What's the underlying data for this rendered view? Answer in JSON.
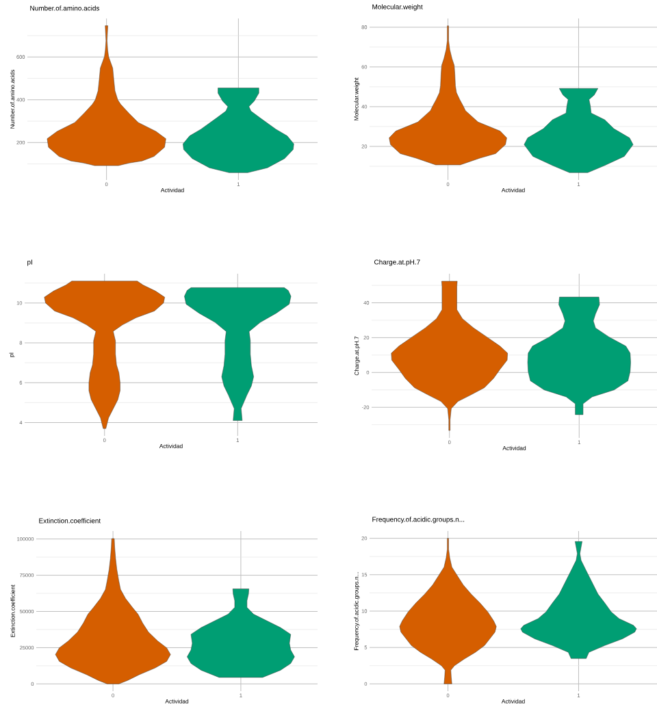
{
  "chart_data": [
    {
      "type": "area",
      "title": "Number.of.amino.acids",
      "xlabel": "Actividad",
      "ylabel": "Number.of.amino.acids",
      "xlim": [
        -0.6,
        1.6
      ],
      "xticks": [
        0,
        1
      ],
      "ylim": [
        25,
        780
      ],
      "yticks": [
        {
          "value": 100,
          "label": null
        },
        200,
        {
          "value": 300,
          "label": null
        },
        400,
        {
          "value": 500,
          "label": null
        },
        600,
        {
          "value": 700,
          "label": null
        }
      ],
      "grid": true,
      "series": [
        {
          "color": "#d55e00",
          "x": [
            -0.09,
            -0.17,
            -0.27,
            -0.36,
            -0.44,
            -0.45,
            -0.375,
            -0.24,
            -0.17,
            -0.107,
            -0.085,
            -0.064,
            -0.055,
            -0.047,
            -0.016,
            -0.009,
            -0.004,
            -0.006,
            -0.01,
            0.01,
            0.006,
            0.004,
            0.009,
            0.016,
            0.047,
            0.055,
            0.064,
            0.085,
            0.107,
            0.17,
            0.24,
            0.375,
            0.45,
            0.44,
            0.36,
            0.27,
            0.17,
            0.09
          ],
          "values": [
            92,
            104,
            114,
            135,
            178,
            218,
            252,
            294,
            337,
            379,
            400,
            442,
            495,
            548,
            601,
            633,
            676,
            700,
            746,
            746,
            700,
            676,
            633,
            601,
            548,
            495,
            442,
            400,
            379,
            337,
            294,
            252,
            218,
            178,
            135,
            114,
            104,
            92
          ]
        },
        {
          "color": "#009e73",
          "x": [
            0.93,
            0.78,
            0.65,
            0.585,
            0.58,
            0.63,
            0.715,
            0.835,
            0.905,
            0.92,
            0.88,
            0.845,
            0.845,
            1.155,
            1.155,
            1.12,
            1.08,
            1.095,
            1.165,
            1.285,
            1.37,
            1.42,
            1.415,
            1.35,
            1.22,
            1.07
          ],
          "values": [
            59,
            82,
            125,
            167,
            194,
            231,
            262,
            315,
            347,
            368,
            394,
            431,
            455,
            455,
            431,
            394,
            368,
            347,
            315,
            262,
            231,
            194,
            167,
            125,
            82,
            59
          ]
        }
      ]
    },
    {
      "type": "area",
      "title": "Molecular.weight",
      "xlabel": "Actividad",
      "ylabel": "Molecular.weight",
      "xlim": [
        -0.6,
        1.6
      ],
      "xticks": [
        0,
        1
      ],
      "ylim": [
        3.1,
        84.4
      ],
      "yticks": [
        {
          "value": 10,
          "label": null
        },
        20,
        {
          "value": 30,
          "label": null
        },
        40,
        {
          "value": 50,
          "label": null
        },
        60,
        {
          "value": 70,
          "label": null
        },
        80
      ],
      "grid": true,
      "series": [
        {
          "color": "#d55e00",
          "x": [
            -0.094,
            -0.245,
            -0.365,
            -0.44,
            -0.45,
            -0.4,
            -0.23,
            -0.134,
            -0.117,
            -0.09,
            -0.065,
            -0.057,
            -0.053,
            -0.048,
            -0.031,
            -0.014,
            -0.005,
            -0.005,
            0.005,
            0.005,
            0.014,
            0.031,
            0.048,
            0.053,
            0.057,
            0.065,
            0.09,
            0.117,
            0.134,
            0.23,
            0.4,
            0.45,
            0.44,
            0.365,
            0.245,
            0.094
          ],
          "values": [
            10.7,
            14.1,
            16.4,
            20.9,
            24.3,
            27.7,
            32.3,
            38,
            40.3,
            43.6,
            47.1,
            50.5,
            56.2,
            60.8,
            64.2,
            68.7,
            73.3,
            80.7,
            80.7,
            73.3,
            68.7,
            64.2,
            60.8,
            56.2,
            50.5,
            47.1,
            43.6,
            40.3,
            38,
            32.3,
            27.7,
            24.3,
            20.9,
            16.4,
            14.1,
            10.7
          ]
        },
        {
          "color": "#009e73",
          "x": [
            0.93,
            0.8,
            0.65,
            0.583,
            0.61,
            0.73,
            0.8,
            0.904,
            0.91,
            0.92,
            0.88,
            0.852,
            1.148,
            1.12,
            1.08,
            1.09,
            1.096,
            1.2,
            1.27,
            1.39,
            1.417,
            1.35,
            1.2,
            1.07
          ],
          "values": [
            6.8,
            10.4,
            15,
            20.9,
            24.3,
            28.9,
            33.4,
            36.8,
            40.3,
            43.6,
            45.9,
            49.2,
            49.2,
            45.9,
            43.6,
            40.3,
            36.8,
            33.4,
            28.9,
            24.3,
            20.9,
            15,
            10.4,
            6.8
          ]
        }
      ]
    },
    {
      "type": "area",
      "title": "pI",
      "xlabel": "Actividad",
      "ylabel": "pI",
      "xlim": [
        -0.6,
        1.6
      ],
      "xticks": [
        0,
        1
      ],
      "ylim": [
        3.33,
        11.47
      ],
      "yticks": [
        4,
        {
          "value": 5,
          "label": null
        },
        6,
        {
          "value": 7,
          "label": null
        },
        8,
        {
          "value": 9,
          "label": null
        },
        10,
        {
          "value": 11,
          "label": null
        }
      ],
      "grid": true,
      "series": [
        {
          "color": "#d55e00",
          "x": [
            -0.01,
            -0.03,
            -0.065,
            -0.1,
            -0.117,
            -0.117,
            -0.108,
            -0.09,
            -0.082,
            -0.082,
            -0.065,
            -0.134,
            -0.237,
            -0.375,
            -0.443,
            -0.452,
            -0.383,
            -0.29,
            -0.246,
            0.246,
            0.29,
            0.383,
            0.452,
            0.443,
            0.375,
            0.237,
            0.134,
            0.065,
            0.082,
            0.082,
            0.09,
            0.108,
            0.117,
            0.117,
            0.1,
            0.065,
            0.03,
            0.01
          ],
          "values": [
            3.7,
            4.23,
            4.69,
            5.15,
            5.6,
            6.0,
            6.5,
            6.9,
            7.44,
            8.1,
            8.58,
            8.9,
            9.26,
            9.6,
            10.0,
            10.29,
            10.6,
            10.9,
            11.1,
            11.1,
            10.9,
            10.6,
            10.29,
            10.0,
            9.6,
            9.26,
            8.9,
            8.58,
            8.1,
            7.44,
            6.9,
            6.5,
            6.0,
            5.6,
            5.15,
            4.69,
            4.23,
            3.7
          ]
        },
        {
          "color": "#009e73",
          "x": [
            0.966,
            0.974,
            0.931,
            0.897,
            0.88,
            0.897,
            0.905,
            0.905,
            0.914,
            0.83,
            0.71,
            0.613,
            0.6,
            0.62,
            0.65,
            1.35,
            1.38,
            1.4,
            1.387,
            1.29,
            1.17,
            1.086,
            1.095,
            1.095,
            1.103,
            1.12,
            1.103,
            1.069,
            1.026,
            1.034
          ],
          "values": [
            4.1,
            4.7,
            5.37,
            5.84,
            6.3,
            6.86,
            7.43,
            8.11,
            8.57,
            9.03,
            9.49,
            9.94,
            10.34,
            10.63,
            10.77,
            10.77,
            10.63,
            10.34,
            9.94,
            9.49,
            9.03,
            8.57,
            8.11,
            7.43,
            6.86,
            6.3,
            5.84,
            5.37,
            4.7,
            4.1
          ]
        }
      ]
    },
    {
      "type": "area",
      "title": "Charge.at.pH.7",
      "xlabel": "Actividad",
      "ylabel": "Charge.at.pH.7",
      "xlim": [
        -0.6,
        1.6
      ],
      "xticks": [
        0,
        1
      ],
      "ylim": [
        -37.6,
        56.7
      ],
      "yticks": [
        {
          "value": -30,
          "label": null
        },
        -20,
        {
          "value": -10,
          "label": null
        },
        0,
        {
          "value": 10,
          "label": null
        },
        20,
        {
          "value": 30,
          "label": null
        },
        40,
        {
          "value": 50,
          "label": null
        }
      ],
      "grid": true,
      "series": [
        {
          "color": "#d55e00",
          "x": [
            -0.005,
            -0.005,
            -0.014,
            -0.066,
            -0.17,
            -0.27,
            -0.34,
            -0.39,
            -0.445,
            -0.448,
            -0.39,
            -0.29,
            -0.186,
            -0.1,
            -0.057,
            -0.057,
            -0.06,
            0.06,
            0.057,
            0.057,
            0.1,
            0.186,
            0.29,
            0.39,
            0.448,
            0.445,
            0.39,
            0.34,
            0.27,
            0.17,
            0.066,
            0.014,
            0.005,
            0.005
          ],
          "values": [
            -33.3,
            -27.2,
            -20.7,
            -16.6,
            -12.7,
            -8.7,
            -3.4,
            1.8,
            7.1,
            11.1,
            15.1,
            20.3,
            25.6,
            30.9,
            36.1,
            49.3,
            52.4,
            52.4,
            49.3,
            36.1,
            30.9,
            25.6,
            20.3,
            15.1,
            11.1,
            7.1,
            1.8,
            -3.4,
            -8.7,
            -12.7,
            -16.6,
            -20.7,
            -27.2,
            -33.3
          ]
        },
        {
          "color": "#009e73",
          "x": [
            0.97,
            0.97,
            0.9,
            0.73,
            0.624,
            0.607,
            0.603,
            0.607,
            0.64,
            0.77,
            0.874,
            0.891,
            0.874,
            0.843,
            0.848,
            1.152,
            1.157,
            1.126,
            1.109,
            1.126,
            1.23,
            1.36,
            1.393,
            1.397,
            1.393,
            1.376,
            1.27,
            1.1,
            1.03,
            1.03
          ],
          "values": [
            -24.2,
            -18,
            -14,
            -10,
            -4.8,
            0.5,
            5.8,
            11.1,
            15.1,
            20.4,
            25.6,
            29.6,
            33.6,
            38.9,
            43.3,
            43.3,
            38.9,
            33.6,
            29.6,
            25.6,
            20.4,
            15.1,
            11.1,
            5.8,
            0.5,
            -4.8,
            -10,
            -14,
            -18,
            -24.2
          ]
        }
      ]
    },
    {
      "type": "area",
      "title": "Extinction.coefficient",
      "xlabel": "Actividad",
      "ylabel": "Extinction.coefficient",
      "xlim": [
        -0.6,
        1.6
      ],
      "xticks": [
        0,
        1
      ],
      "ylim": [
        -5000,
        105500
      ],
      "yticks": [
        0,
        {
          "value": 12500,
          "label": null
        },
        25000,
        {
          "value": 37500,
          "label": null
        },
        50000,
        {
          "value": 62500,
          "label": null
        },
        75000,
        {
          "value": 87500,
          "label": null
        },
        100000
      ],
      "grid": true,
      "series": [
        {
          "color": "#d55e00",
          "x": [
            -0.045,
            -0.116,
            -0.205,
            -0.33,
            -0.42,
            -0.45,
            -0.42,
            -0.35,
            -0.277,
            -0.232,
            -0.196,
            -0.152,
            -0.098,
            -0.059,
            -0.045,
            -0.03,
            -0.02,
            -0.013,
            -0.01,
            0.01,
            0.013,
            0.02,
            0.03,
            0.045,
            0.059,
            0.098,
            0.152,
            0.196,
            0.232,
            0.277,
            0.35,
            0.42,
            0.45,
            0.42,
            0.33,
            0.205,
            0.116,
            0.045
          ],
          "values": [
            0,
            2480,
            6350,
            11000,
            15600,
            20300,
            24900,
            29600,
            35800,
            42000,
            48100,
            52800,
            59000,
            65200,
            71400,
            79100,
            86800,
            94600,
            100300,
            100300,
            94600,
            86800,
            79100,
            71400,
            65200,
            59000,
            52800,
            48100,
            42000,
            35800,
            29600,
            24900,
            20300,
            15600,
            11000,
            6350,
            2480,
            0
          ]
        },
        {
          "color": "#009e73",
          "x": [
            0.83,
            0.69,
            0.61,
            0.58,
            0.61,
            0.62,
            0.61,
            0.69,
            0.795,
            0.9,
            0.952,
            0.952,
            0.94,
            0.937,
            1.063,
            1.06,
            1.048,
            1.048,
            1.1,
            1.205,
            1.31,
            1.39,
            1.38,
            1.39,
            1.42,
            1.39,
            1.31,
            1.17
          ],
          "values": [
            4490,
            9440,
            14100,
            18700,
            23400,
            28000,
            34200,
            38900,
            43500,
            48100,
            52800,
            57400,
            62100,
            65600,
            65600,
            62100,
            57400,
            52800,
            48100,
            43500,
            38900,
            34200,
            28000,
            23400,
            18700,
            14100,
            9440,
            4490
          ]
        }
      ]
    },
    {
      "type": "area",
      "title": "Frequency.of.acidic.groups.n...",
      "xlabel": "Actividad",
      "ylabel": "Frequency.of.acidic.groups.n...",
      "xlim": [
        -0.6,
        1.6
      ],
      "xticks": [
        0,
        1
      ],
      "ylim": [
        -1,
        21
      ],
      "yticks": [
        0,
        {
          "value": 2.5,
          "label": null
        },
        5,
        {
          "value": 7.5,
          "label": null
        },
        10,
        {
          "value": 12.5,
          "label": null
        },
        15,
        {
          "value": 17.5,
          "label": null
        },
        20
      ],
      "grid": true,
      "series": [
        {
          "color": "#d55e00",
          "x": [
            -0.03,
            -0.025,
            -0.022,
            -0.05,
            -0.125,
            -0.21,
            -0.28,
            -0.32,
            -0.36,
            -0.37,
            -0.35,
            -0.305,
            -0.245,
            -0.177,
            -0.117,
            -0.074,
            -0.03,
            -0.014,
            -0.005,
            -0.005,
            0.005,
            0.005,
            0.014,
            0.03,
            0.074,
            0.117,
            0.177,
            0.245,
            0.305,
            0.35,
            0.37,
            0.36,
            0.32,
            0.28,
            0.21,
            0.125,
            0.05,
            0.022,
            0.025,
            0.03
          ],
          "values": [
            0,
            0.95,
            1.88,
            2.5,
            3.42,
            4.34,
            5.27,
            6.19,
            7.12,
            7.89,
            8.66,
            9.89,
            11.12,
            12.35,
            13.6,
            14.8,
            16.05,
            17.3,
            18.5,
            20,
            20,
            18.5,
            17.3,
            16.05,
            14.8,
            13.6,
            12.35,
            11.12,
            9.89,
            8.66,
            7.89,
            7.12,
            6.19,
            5.27,
            4.34,
            3.42,
            2.5,
            1.88,
            0.95,
            0
          ]
        },
        {
          "color": "#009e73",
          "x": [
            0.942,
            0.921,
            0.8,
            0.664,
            0.57,
            0.557,
            0.58,
            0.69,
            0.75,
            0.8,
            0.852,
            0.904,
            0.947,
            0.981,
            0.99,
            0.981,
            0.973,
            1.027,
            1.019,
            1.01,
            1.019,
            1.053,
            1.096,
            1.148,
            1.2,
            1.25,
            1.31,
            1.42,
            1.443,
            1.43,
            1.336,
            1.2,
            1.079,
            1.058
          ],
          "values": [
            3.48,
            4.34,
            5.27,
            6.19,
            7.12,
            7.58,
            8.04,
            8.96,
            9.89,
            11.12,
            12.35,
            14.2,
            15.74,
            16.97,
            17.9,
            18.8,
            19.56,
            19.56,
            18.8,
            17.9,
            16.97,
            15.74,
            14.2,
            12.35,
            11.12,
            9.89,
            8.96,
            8.04,
            7.58,
            7.12,
            6.19,
            5.27,
            4.34,
            3.48
          ]
        }
      ]
    }
  ]
}
